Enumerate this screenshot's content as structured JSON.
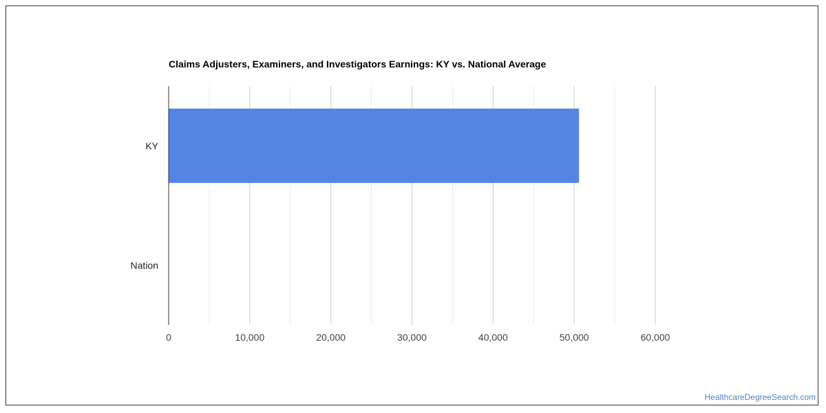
{
  "chart_data": {
    "type": "bar",
    "orientation": "horizontal",
    "title": "Claims Adjusters, Examiners, and Investigators Earnings: KY vs. National Average",
    "categories": [
      "KY",
      "Nation"
    ],
    "values": [
      50600,
      0
    ],
    "xlim": [
      0,
      60000
    ],
    "x_ticks": [
      0,
      10000,
      20000,
      30000,
      40000,
      50000,
      60000
    ],
    "x_tick_labels": [
      "0",
      "10,000",
      "20,000",
      "30,000",
      "40,000",
      "50,000",
      "60,000"
    ],
    "grid": true,
    "bar_color": "#5386e4"
  },
  "footer": {
    "credit": "HealthcareDegreeSearch.com"
  }
}
